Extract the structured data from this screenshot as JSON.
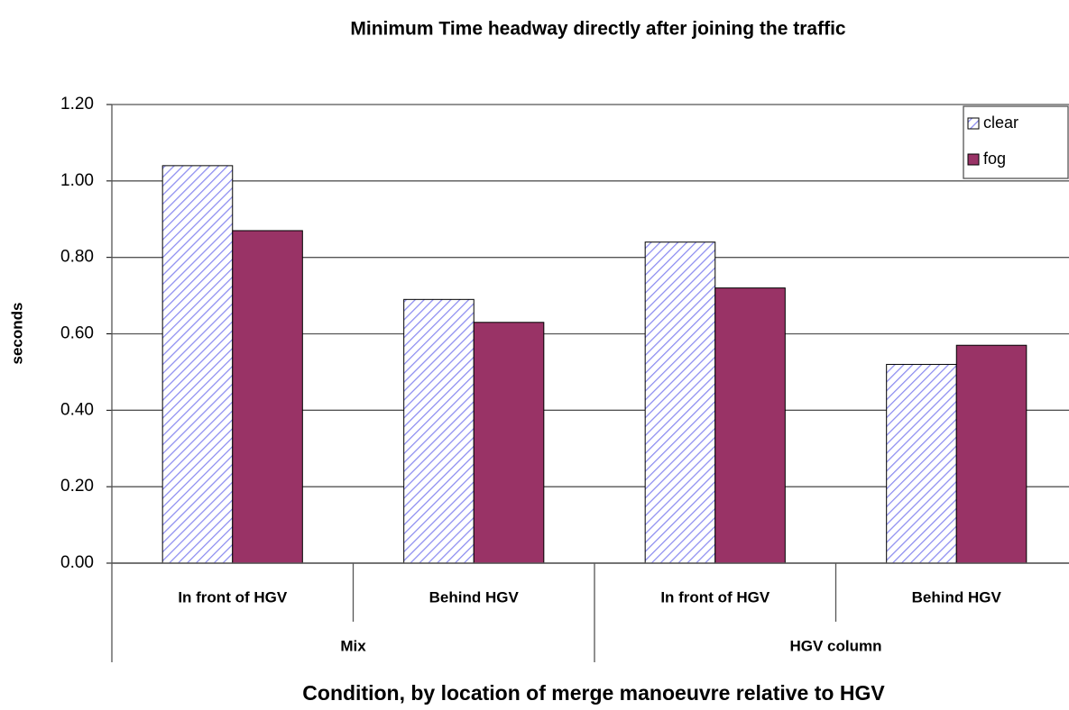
{
  "chart_data": {
    "type": "bar",
    "title": "Minimum Time headway directly after joining the traffic",
    "y_label": "seconds",
    "x_label": "Condition, by location of merge manoeuvre relative to HGV",
    "categories": [
      "In front of HGV",
      "Behind HGV",
      "In front of HGV",
      "Behind HGV"
    ],
    "groups": [
      "Mix",
      "HGV column"
    ],
    "series": [
      {
        "name": "clear",
        "color": "#8c8cf0",
        "fill_pattern": "diagonal-hatch",
        "values": [
          1.04,
          0.69,
          0.84,
          0.52
        ]
      },
      {
        "name": "fog",
        "color": "#993366",
        "values": [
          0.87,
          0.63,
          0.72,
          0.57
        ]
      }
    ],
    "ylim": [
      0,
      1.2
    ],
    "yticks": [
      {
        "value": 0,
        "label": "0.00"
      },
      {
        "value": 0.2,
        "label": "0.20"
      },
      {
        "value": 0.4,
        "label": "0.40"
      },
      {
        "value": 0.6,
        "label": "0.60"
      },
      {
        "value": 0.8,
        "label": "0.80"
      },
      {
        "value": 1,
        "label": "1.00"
      },
      {
        "value": 1.2,
        "label": "1.20"
      }
    ],
    "grid": true,
    "legend": "upper right"
  }
}
